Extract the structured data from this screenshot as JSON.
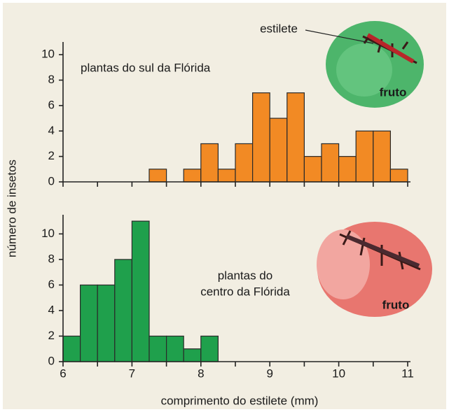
{
  "shared_axes": {
    "ylabel": "número de insetos",
    "xlabel": "comprimento do estilete (mm)"
  },
  "chart_data": [
    {
      "type": "histogram",
      "annotation": [
        "plantas do sul da Flórida"
      ],
      "image_labels": [
        "estilete",
        "fruto"
      ],
      "bins": [
        6,
        6.25,
        6.5,
        6.75,
        7,
        7.25,
        7.5,
        7.75,
        8,
        8.25,
        8.5,
        8.75,
        9,
        9.25,
        9.5,
        9.75,
        10,
        10.25,
        10.5,
        10.75,
        11
      ],
      "values": [
        0,
        0,
        0,
        0,
        0,
        1,
        0,
        1,
        3,
        1,
        3,
        7,
        5,
        7,
        2,
        3,
        2,
        4,
        4,
        1
      ],
      "color": "#f28a24",
      "xlim": [
        6,
        11
      ],
      "ylim": [
        0,
        11
      ],
      "yticks": [
        0,
        2,
        4,
        6,
        8,
        10
      ],
      "xticks": [
        6,
        7,
        8,
        9,
        10,
        11
      ],
      "xminorticks": [
        6.5,
        7.5,
        8.5,
        9.5,
        10.5
      ],
      "show_xtick_labels": false
    },
    {
      "type": "histogram",
      "annotation": [
        "plantas do",
        "centro da Flórida"
      ],
      "image_labels": [
        "fruto"
      ],
      "bins": [
        6,
        6.25,
        6.5,
        6.75,
        7,
        7.25,
        7.5,
        7.75,
        8,
        8.25,
        8.5,
        8.75,
        9,
        9.25,
        9.5,
        9.75,
        10,
        10.25,
        10.5,
        10.75,
        11
      ],
      "values": [
        2,
        6,
        6,
        8,
        11,
        2,
        2,
        1,
        2,
        0,
        0,
        0,
        0,
        0,
        0,
        0,
        0,
        0,
        0,
        0
      ],
      "color": "#1fa04c",
      "xlim": [
        6,
        11
      ],
      "ylim": [
        0,
        11.5
      ],
      "yticks": [
        0,
        2,
        4,
        6,
        8,
        10
      ],
      "xticks": [
        6,
        7,
        8,
        9,
        10,
        11
      ],
      "xminorticks": [
        6.5,
        7.5,
        8.5,
        9.5,
        10.5
      ],
      "show_xtick_labels": true
    }
  ]
}
